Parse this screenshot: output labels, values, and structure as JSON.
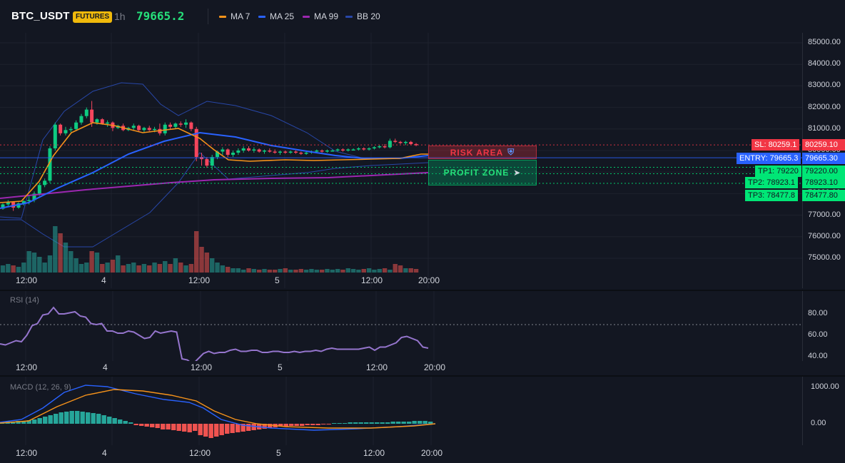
{
  "header": {
    "symbol": "BTC_USDT",
    "badge": "FUTURES",
    "interval": "1h",
    "last_price": "79665.2",
    "indicators": [
      {
        "label": "MA 7",
        "color": "#f7931a"
      },
      {
        "label": "MA 25",
        "color": "#2962ff"
      },
      {
        "label": "MA 99",
        "color": "#9c27b0"
      },
      {
        "label": "BB 20",
        "color": "#2847a8"
      }
    ]
  },
  "price_axis": {
    "ticks": [
      "85000.00",
      "84000.00",
      "83000.00",
      "82000.00",
      "81000.00",
      "80000.00",
      "79000.00",
      "78000.00",
      "77000.00",
      "76000.00",
      "75000.00"
    ]
  },
  "time_axis": {
    "ticks": [
      "12:00",
      "4",
      "12:00",
      "5",
      "12:00",
      "20:00"
    ]
  },
  "levels": {
    "sl": {
      "left": "SL: 80259.1",
      "right": "80259.10",
      "color": "#f23645"
    },
    "entry": {
      "left": "ENTRY: 79665.3",
      "right": "79665.30",
      "color": "#2962ff"
    },
    "tp1": {
      "left": "TP1: 79220",
      "right": "79220.00",
      "color": "#00e676"
    },
    "tp2": {
      "left": "TP2: 78923.1",
      "right": "78923.10",
      "color": "#00e676"
    },
    "tp3": {
      "left": "TP3: 78477.8",
      "right": "78477.80",
      "color": "#00e676"
    }
  },
  "zones": {
    "risk": "RISK AREA",
    "profit": "PROFIT ZONE"
  },
  "rsi": {
    "title": "RSI (14)",
    "ticks": [
      "80.00",
      "60.00",
      "40.00"
    ],
    "time_ticks": [
      "12:00",
      "4",
      "12:00",
      "5",
      "12:00",
      "20:00"
    ],
    "values": [
      52,
      51,
      53,
      55,
      54,
      60,
      69,
      71,
      79,
      80,
      86,
      80,
      80,
      81,
      82,
      78,
      77,
      71,
      70,
      71,
      64,
      64,
      62,
      62,
      64,
      63,
      60,
      57,
      58,
      64,
      62,
      63,
      64,
      63,
      38,
      37,
      33,
      38,
      43,
      45,
      43,
      44,
      44,
      46,
      47,
      45,
      45,
      46,
      46,
      44,
      44,
      45,
      45,
      44,
      44,
      45,
      44,
      45,
      45,
      46,
      45,
      47,
      48,
      47,
      47,
      47,
      47,
      47,
      48,
      49,
      46,
      49,
      49,
      51,
      53,
      58,
      59,
      57,
      55,
      49,
      48
    ]
  },
  "macd": {
    "title": "MACD (12, 26, 9)",
    "ticks": [
      "1000.00",
      "0.00"
    ],
    "time_ticks": [
      "12:00",
      "4",
      "12:00",
      "5",
      "12:00",
      "20:00"
    ]
  },
  "colors": {
    "up": "#26a69a",
    "down": "#ef5350",
    "candle_up": "#0ecb81",
    "candle_down": "#f6465d"
  }
}
